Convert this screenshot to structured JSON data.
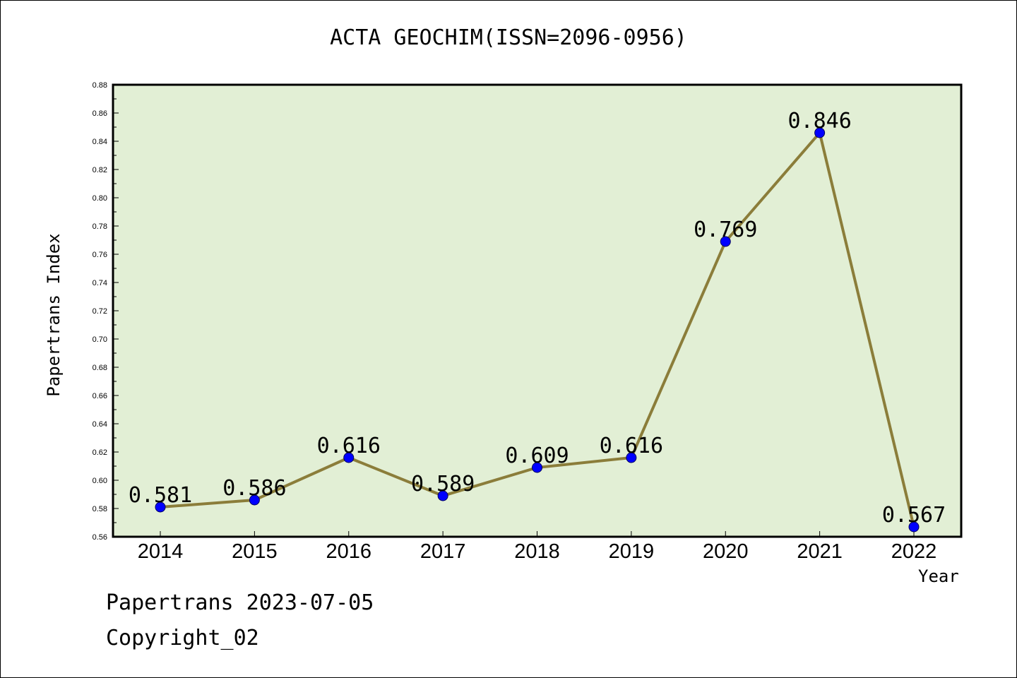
{
  "chart_data": {
    "type": "line",
    "title": "ACTA GEOCHIM(ISSN=2096-0956)",
    "xlabel": "Year",
    "ylabel": "Papertrans Index",
    "categories": [
      "2014",
      "2015",
      "2016",
      "2017",
      "2018",
      "2019",
      "2020",
      "2021",
      "2022"
    ],
    "values": [
      0.581,
      0.586,
      0.616,
      0.589,
      0.609,
      0.616,
      0.769,
      0.846,
      0.567
    ],
    "data_labels": [
      "0.581",
      "0.586",
      "0.616",
      "0.589",
      "0.609",
      "0.616",
      "0.769",
      "0.846",
      "0.567"
    ],
    "ylim": [
      0.56,
      0.88
    ],
    "yticks": [
      "0.56",
      "0.58",
      "0.60",
      "0.62",
      "0.64",
      "0.66",
      "0.68",
      "0.70",
      "0.72",
      "0.74",
      "0.76",
      "0.78",
      "0.80",
      "0.82",
      "0.84",
      "0.86",
      "0.88"
    ],
    "grid": false,
    "legend": "none",
    "colors": {
      "plot_background": "#e2efd5",
      "line": "#8b7d3a",
      "marker": "#0000ff"
    }
  },
  "footer": {
    "line1": "Papertrans 2023-07-05",
    "line2": "Copyright_02"
  }
}
